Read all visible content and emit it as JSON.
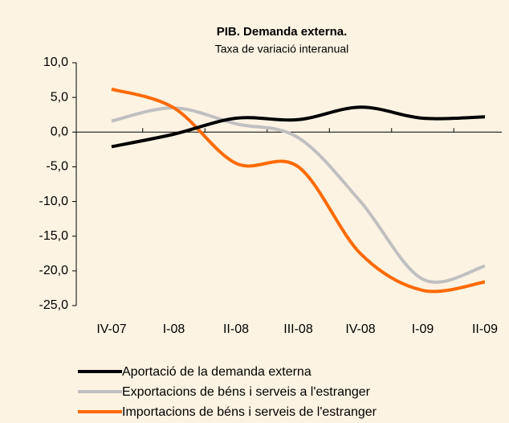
{
  "chart_data": {
    "type": "line",
    "title": "PIB. Demanda externa.",
    "subtitle": "Taxa de variació interanual",
    "categories": [
      "IV-07",
      "I-08",
      "II-08",
      "III-08",
      "IV-08",
      "I-09",
      "II-09"
    ],
    "series": [
      {
        "name": "Aportació de la demanda externa",
        "color": "#000000",
        "values": [
          -2.1,
          -0.3,
          2.0,
          1.8,
          3.6,
          2.0,
          2.2
        ]
      },
      {
        "name": "Exportacions de béns i serveis a l'estranger",
        "color": "#c0c0c0",
        "values": [
          1.6,
          3.5,
          1.2,
          -0.8,
          -10.0,
          -21.2,
          -19.3
        ]
      },
      {
        "name": "Importacions de béns i serveis de l'estranger",
        "color": "#ff6a00",
        "values": [
          6.2,
          3.5,
          -4.5,
          -5.0,
          -17.5,
          -22.8,
          -21.6
        ]
      }
    ],
    "ylim": [
      -25,
      10
    ],
    "yticks": [
      {
        "value": -25,
        "label": "-25,0"
      },
      {
        "value": -20,
        "label": "-20,0"
      },
      {
        "value": -15,
        "label": "-15,0"
      },
      {
        "value": -10,
        "label": "-10,0"
      },
      {
        "value": -5,
        "label": "-5,0"
      },
      {
        "value": 0,
        "label": "0,0"
      },
      {
        "value": 5,
        "label": "5,0"
      },
      {
        "value": 10,
        "label": "10,0"
      }
    ],
    "smooth": true,
    "legend": "bottom"
  }
}
